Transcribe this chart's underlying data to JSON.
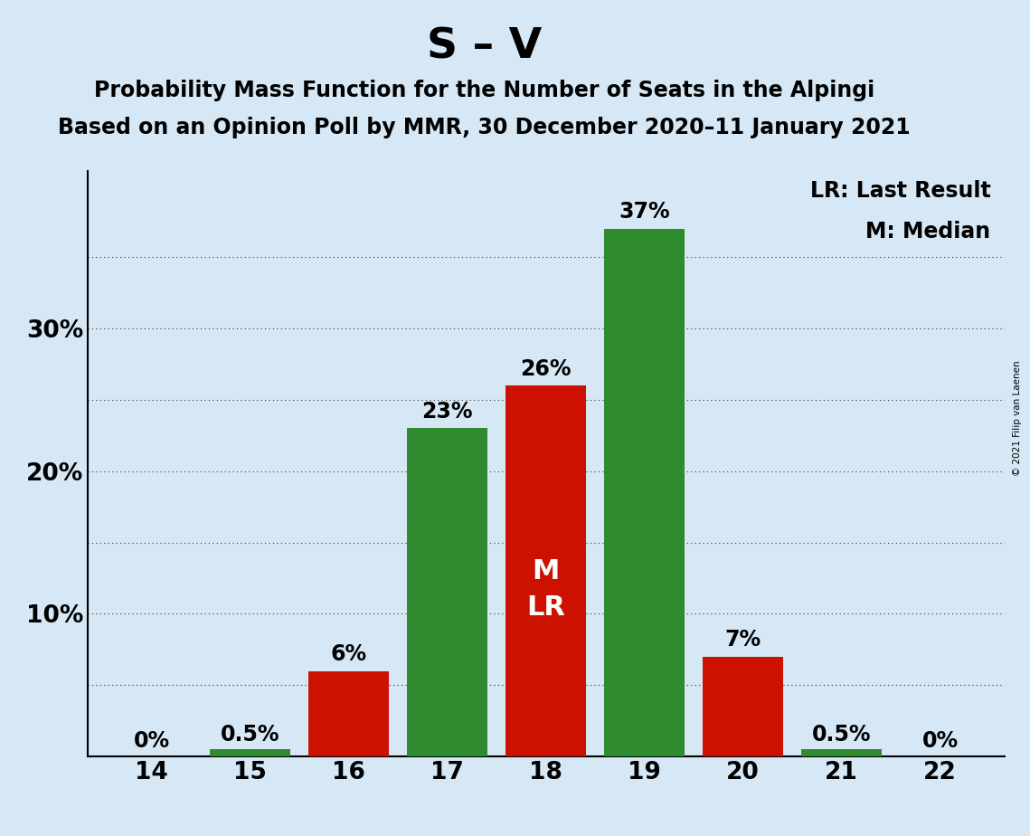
{
  "title": "S – V",
  "subtitle": "Probability Mass Function for the Number of Seats in the Alpingi",
  "subsubtitle": "Based on an Opinion Poll by MMR, 30 December 2020–11 January 2021",
  "copyright": "© 2021 Filip van Laenen",
  "seats": [
    14,
    15,
    16,
    17,
    18,
    19,
    20,
    21,
    22
  ],
  "values": [
    0.0,
    0.5,
    6.0,
    23.0,
    26.0,
    37.0,
    7.0,
    0.5,
    0.0
  ],
  "bar_colors": [
    "#2e8b2e",
    "#2e8b2e",
    "#cc1100",
    "#2e8b2e",
    "#cc1100",
    "#2e8b2e",
    "#cc1100",
    "#2e8b2e",
    "#2e8b2e"
  ],
  "labels": [
    "0%",
    "0.5%",
    "6%",
    "23%",
    "26%",
    "37%",
    "7%",
    "0.5%",
    "0%"
  ],
  "bar_with_M_LR_idx": 4,
  "M_LR_color": "#ffffff",
  "legend_text_1": "LR: Last Result",
  "legend_text_2": "M: Median",
  "background_color": "#d6e8f5",
  "ylim": [
    0,
    41
  ],
  "yticks": [
    10,
    20,
    30
  ],
  "ytick_labels": [
    "10%",
    "20%",
    "30%"
  ],
  "grid_values": [
    5,
    10,
    15,
    20,
    25,
    30,
    35
  ],
  "title_fontsize": 34,
  "subtitle_fontsize": 17,
  "subsubtitle_fontsize": 17,
  "label_fontsize": 17,
  "tick_fontsize": 19,
  "legend_fontsize": 17,
  "M_LR_fontsize": 22,
  "bar_width": 0.82
}
